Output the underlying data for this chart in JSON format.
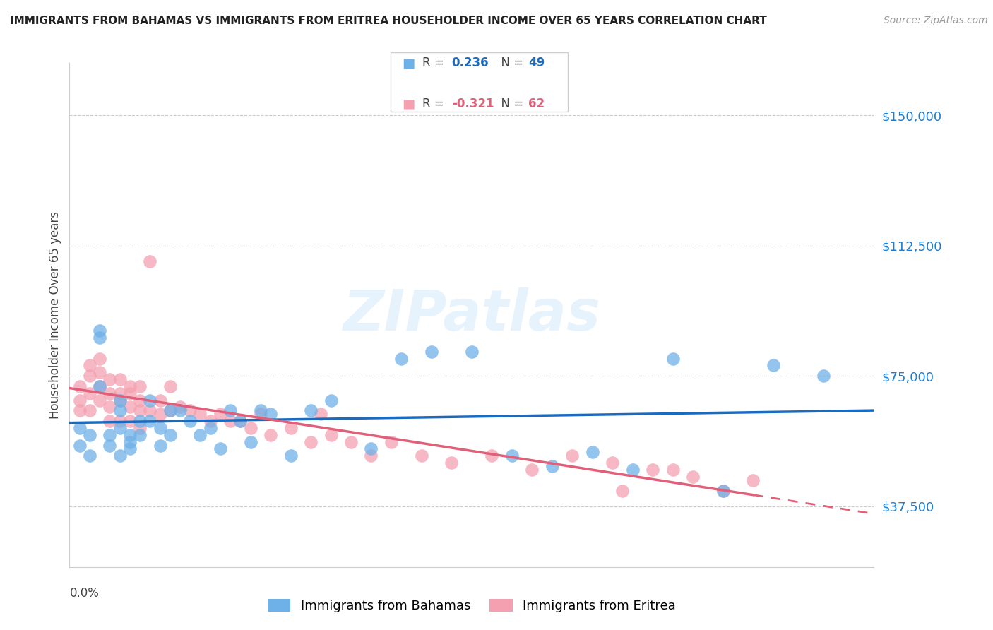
{
  "title": "IMMIGRANTS FROM BAHAMAS VS IMMIGRANTS FROM ERITREA HOUSEHOLDER INCOME OVER 65 YEARS CORRELATION CHART",
  "source": "Source: ZipAtlas.com",
  "ylabel": "Householder Income Over 65 years",
  "xmin": 0.0,
  "xmax": 0.08,
  "ymin": 20000,
  "ymax": 165000,
  "yticks": [
    37500,
    75000,
    112500,
    150000
  ],
  "ytick_labels": [
    "$37,500",
    "$75,000",
    "$112,500",
    "$150,000"
  ],
  "bahamas_R": 0.236,
  "bahamas_N": 49,
  "eritrea_R": -0.321,
  "eritrea_N": 62,
  "legend_label_bahamas": "Immigrants from Bahamas",
  "legend_label_eritrea": "Immigrants from Eritrea",
  "bahamas_color": "#6eb0e8",
  "eritrea_color": "#f4a0b0",
  "bahamas_line_color": "#1a6bbf",
  "eritrea_line_color": "#e0607a",
  "watermark": "ZIPatlas",
  "bahamas_x": [
    0.001,
    0.001,
    0.002,
    0.002,
    0.003,
    0.003,
    0.003,
    0.004,
    0.004,
    0.005,
    0.005,
    0.005,
    0.005,
    0.006,
    0.006,
    0.006,
    0.007,
    0.007,
    0.008,
    0.008,
    0.009,
    0.009,
    0.01,
    0.01,
    0.011,
    0.012,
    0.013,
    0.014,
    0.015,
    0.016,
    0.017,
    0.018,
    0.019,
    0.02,
    0.022,
    0.024,
    0.026,
    0.03,
    0.033,
    0.036,
    0.04,
    0.044,
    0.048,
    0.052,
    0.056,
    0.06,
    0.065,
    0.07,
    0.075
  ],
  "bahamas_y": [
    60000,
    55000,
    58000,
    52000,
    88000,
    86000,
    72000,
    58000,
    55000,
    68000,
    65000,
    60000,
    52000,
    58000,
    56000,
    54000,
    62000,
    58000,
    68000,
    62000,
    60000,
    55000,
    65000,
    58000,
    65000,
    62000,
    58000,
    60000,
    54000,
    65000,
    62000,
    56000,
    65000,
    64000,
    52000,
    65000,
    68000,
    54000,
    80000,
    82000,
    82000,
    52000,
    49000,
    53000,
    48000,
    80000,
    42000,
    78000,
    75000
  ],
  "eritrea_x": [
    0.001,
    0.001,
    0.001,
    0.002,
    0.002,
    0.002,
    0.002,
    0.003,
    0.003,
    0.003,
    0.003,
    0.004,
    0.004,
    0.004,
    0.004,
    0.005,
    0.005,
    0.005,
    0.005,
    0.006,
    0.006,
    0.006,
    0.006,
    0.007,
    0.007,
    0.007,
    0.007,
    0.008,
    0.008,
    0.009,
    0.009,
    0.01,
    0.01,
    0.011,
    0.012,
    0.013,
    0.014,
    0.015,
    0.016,
    0.017,
    0.018,
    0.019,
    0.02,
    0.022,
    0.024,
    0.026,
    0.028,
    0.03,
    0.032,
    0.035,
    0.038,
    0.042,
    0.046,
    0.05,
    0.054,
    0.058,
    0.06,
    0.062,
    0.065,
    0.068,
    0.025,
    0.055
  ],
  "eritrea_y": [
    72000,
    68000,
    65000,
    78000,
    75000,
    70000,
    65000,
    80000,
    76000,
    72000,
    68000,
    74000,
    70000,
    66000,
    62000,
    74000,
    70000,
    68000,
    62000,
    72000,
    70000,
    66000,
    62000,
    72000,
    68000,
    65000,
    60000,
    108000,
    65000,
    68000,
    64000,
    72000,
    65000,
    66000,
    65000,
    64000,
    62000,
    64000,
    62000,
    62000,
    60000,
    64000,
    58000,
    60000,
    56000,
    58000,
    56000,
    52000,
    56000,
    52000,
    50000,
    52000,
    48000,
    52000,
    50000,
    48000,
    48000,
    46000,
    42000,
    45000,
    64000,
    42000
  ]
}
